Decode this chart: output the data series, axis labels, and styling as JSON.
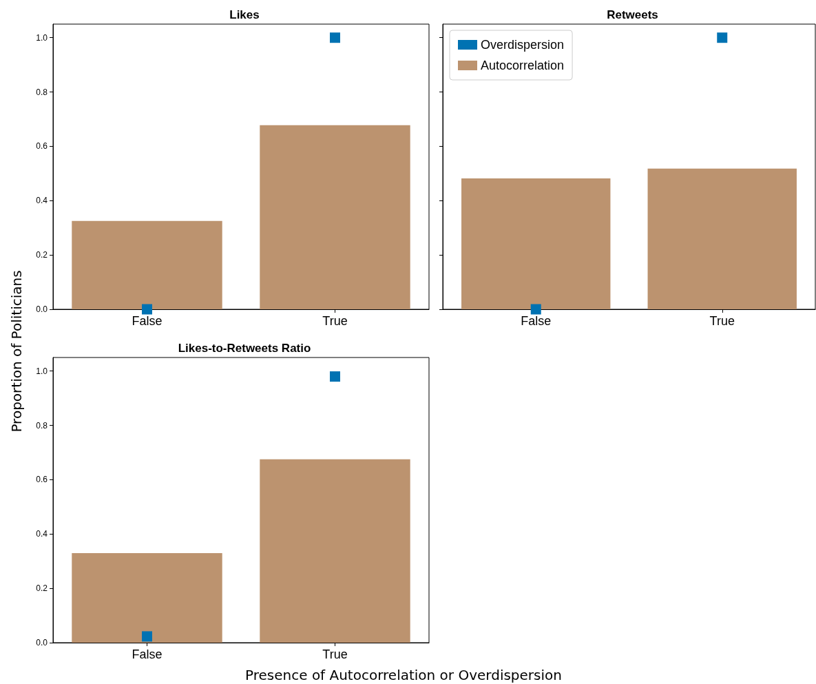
{
  "chart_data": [
    {
      "type": "bar",
      "title": "Likes",
      "ylabel": "Proportion of Politicians",
      "categories": [
        "False",
        "True"
      ],
      "series": [
        {
          "type": "scatter",
          "color": "#0072b2",
          "x": [
            "False",
            "True"
          ],
          "values": [
            0.0,
            1.0
          ],
          "marker": "square"
        },
        {
          "color": "#bc936f",
          "values": [
            0.325,
            0.678
          ]
        }
      ],
      "ylim": [
        0,
        1.05
      ],
      "yticks": [
        {
          "value": 0,
          "label": "0.0"
        },
        {
          "value": 0.2,
          "label": "0.2"
        },
        {
          "value": 0.4,
          "label": "0.4"
        },
        {
          "value": 0.6,
          "label": "0.6"
        },
        {
          "value": 0.8,
          "label": "0.8"
        },
        {
          "value": 1,
          "label": "1.0"
        }
      ],
      "grid": false,
      "legend": false
    },
    {
      "type": "bar",
      "title": "Retweets",
      "categories": [
        "False",
        "True"
      ],
      "series": [
        {
          "type": "scatter",
          "name": "Overdispersion",
          "color": "#0072b2",
          "x": [
            "False",
            "True"
          ],
          "values": [
            0.0,
            1.0
          ],
          "marker": "square"
        },
        {
          "name": "Autocorrelation",
          "color": "#bc936f",
          "values": [
            0.482,
            0.518
          ]
        }
      ],
      "ylim": [
        0,
        1.05
      ],
      "yticks": [
        0,
        0.2,
        0.4,
        0.6,
        0.8,
        1
      ],
      "tick_labels": "x",
      "grid": false,
      "legend": "top left"
    },
    {
      "type": "bar",
      "title": "Likes-to-Retweets Ratio",
      "xlabel": "Presence of Autocorrelation or Overdispersion",
      "categories": [
        "False",
        "True"
      ],
      "series": [
        {
          "type": "scatter",
          "color": "#0072b2",
          "x": [
            "False",
            "True"
          ],
          "values": [
            0.023,
            0.98
          ],
          "marker": "square"
        },
        {
          "color": "#bc936f",
          "values": [
            0.33,
            0.675
          ]
        }
      ],
      "ylim": [
        0,
        1.05
      ],
      "yticks": [
        {
          "value": 0,
          "label": "0.0"
        },
        {
          "value": 0.2,
          "label": "0.2"
        },
        {
          "value": 0.4,
          "label": "0.4"
        },
        {
          "value": 0.6,
          "label": "0.6"
        },
        {
          "value": 0.8,
          "label": "0.8"
        },
        {
          "value": 1,
          "label": "1.0"
        }
      ],
      "grid": false,
      "legend": false
    }
  ]
}
